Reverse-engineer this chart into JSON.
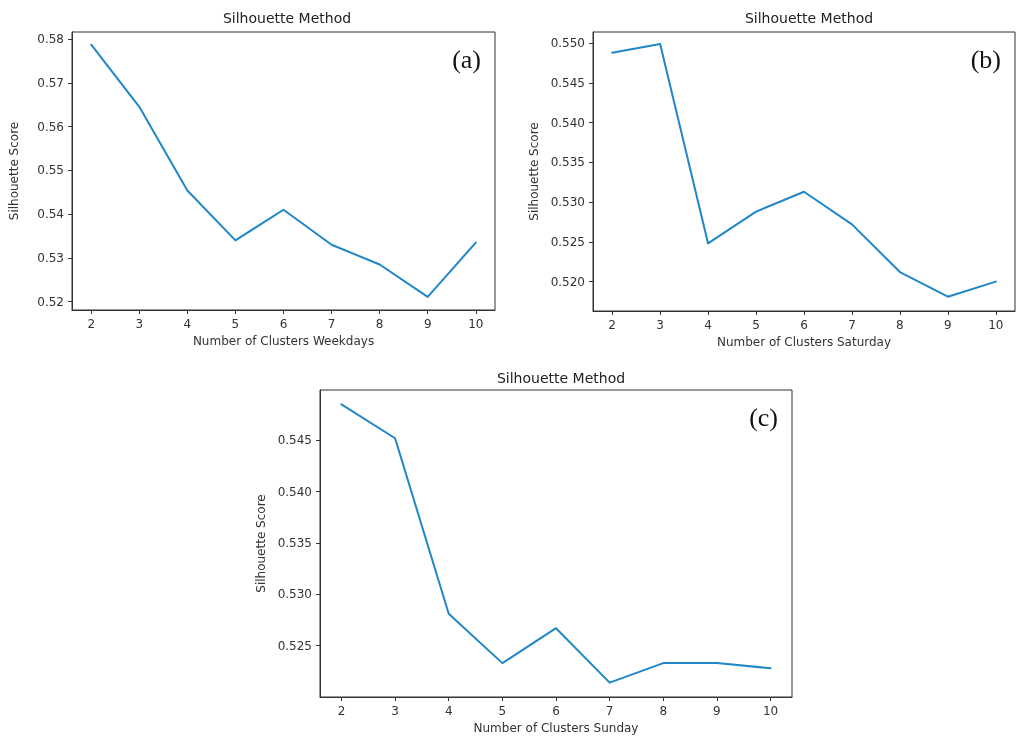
{
  "chart_data": [
    {
      "type": "line",
      "title": "Silhouette Method",
      "xlabel": "Number of Clusters Weekdays",
      "ylabel": "Silhouette Score",
      "annotations": [
        "(a)"
      ],
      "x": [
        2,
        3,
        4,
        5,
        6,
        7,
        8,
        9,
        10
      ],
      "series": [
        {
          "color": "#1f87c8",
          "values": [
            0.5787,
            0.5645,
            0.5454,
            0.534,
            0.541,
            0.533,
            0.5285,
            0.5211,
            0.5335
          ]
        }
      ],
      "xlim": [
        1.6,
        10.4
      ],
      "xticks": [
        2,
        3,
        4,
        5,
        6,
        7,
        8,
        9,
        10
      ],
      "ylim": [
        0.5181,
        0.5816
      ],
      "yticks": [
        0.52,
        0.53,
        0.54,
        0.55,
        0.56,
        0.57,
        0.58
      ],
      "grid": false,
      "marker": "none",
      "line_style": "solid"
    },
    {
      "type": "line",
      "title": "Silhouette Method",
      "xlabel": "Number of Clusters Saturday",
      "ylabel": "Silhouette Score",
      "annotations": [
        "(b)"
      ],
      "x": [
        2,
        3,
        4,
        5,
        6,
        7,
        8,
        9,
        10
      ],
      "series": [
        {
          "color": "#1f87c8",
          "values": [
            0.5488,
            0.5499,
            0.5248,
            0.5288,
            0.5313,
            0.5272,
            0.5212,
            0.5181,
            0.52
          ]
        }
      ],
      "xlim": [
        1.6,
        10.4
      ],
      "xticks": [
        2,
        3,
        4,
        5,
        6,
        7,
        8,
        9,
        10
      ],
      "ylim": [
        0.5163,
        0.5514
      ],
      "yticks": [
        {
          "value": 0.52,
          "label": "0.520"
        },
        0.525,
        {
          "value": 0.53,
          "label": "0.530"
        },
        0.535,
        {
          "value": 0.54,
          "label": "0.540"
        },
        0.545,
        {
          "value": 0.55,
          "label": "0.550"
        }
      ],
      "grid": false,
      "marker": "none",
      "line_style": "solid"
    },
    {
      "type": "line",
      "title": "Silhouette Method",
      "xlabel": "Number of Clusters Sunday",
      "ylabel": "Silhouette Score",
      "annotations": [
        "(c)"
      ],
      "x": [
        2,
        3,
        4,
        5,
        6,
        7,
        8,
        9,
        10
      ],
      "series": [
        {
          "color": "#1f87c8",
          "values": [
            0.5485,
            0.5452,
            0.5281,
            0.5233,
            0.5267,
            0.5214,
            0.5233,
            0.5233,
            0.5228
          ]
        }
      ],
      "xlim": [
        1.6,
        10.4
      ],
      "xticks": [
        2,
        3,
        4,
        5,
        6,
        7,
        8,
        9,
        10
      ],
      "ylim": [
        0.52,
        0.5499
      ],
      "yticks": [
        0.525,
        {
          "value": 0.53,
          "label": "0.530"
        },
        0.535,
        {
          "value": 0.54,
          "label": "0.540"
        },
        0.545
      ],
      "grid": false,
      "marker": "none",
      "line_style": "solid"
    }
  ]
}
